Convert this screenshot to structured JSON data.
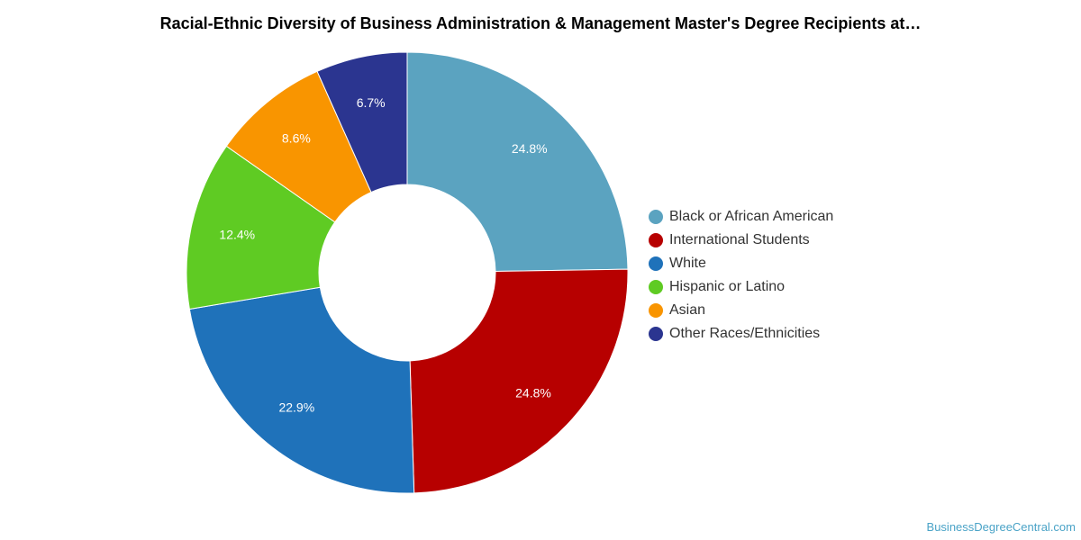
{
  "chart_data": {
    "type": "pie",
    "style": "donut",
    "title": "Racial-Ethnic Diversity of Business Administration & Management Master's Degree Recipients at…",
    "legend_position": "right",
    "series": [
      {
        "name": "Black or African American",
        "value": 24.8,
        "label": "24.8%",
        "color": "#5ba3c0"
      },
      {
        "name": "International Students",
        "value": 24.8,
        "label": "24.8%",
        "color": "#b70000"
      },
      {
        "name": "White",
        "value": 22.9,
        "label": "22.9%",
        "color": "#1f72ba"
      },
      {
        "name": "Hispanic or Latino",
        "value": 12.4,
        "label": "12.4%",
        "color": "#5fcb23"
      },
      {
        "name": "Asian",
        "value": 8.6,
        "label": "8.6%",
        "color": "#f99500"
      },
      {
        "name": "Other Races/Ethnicities",
        "value": 6.7,
        "label": "6.7%",
        "color": "#2b3590"
      }
    ]
  },
  "footer": {
    "source": "BusinessDegreeCentral.com"
  }
}
